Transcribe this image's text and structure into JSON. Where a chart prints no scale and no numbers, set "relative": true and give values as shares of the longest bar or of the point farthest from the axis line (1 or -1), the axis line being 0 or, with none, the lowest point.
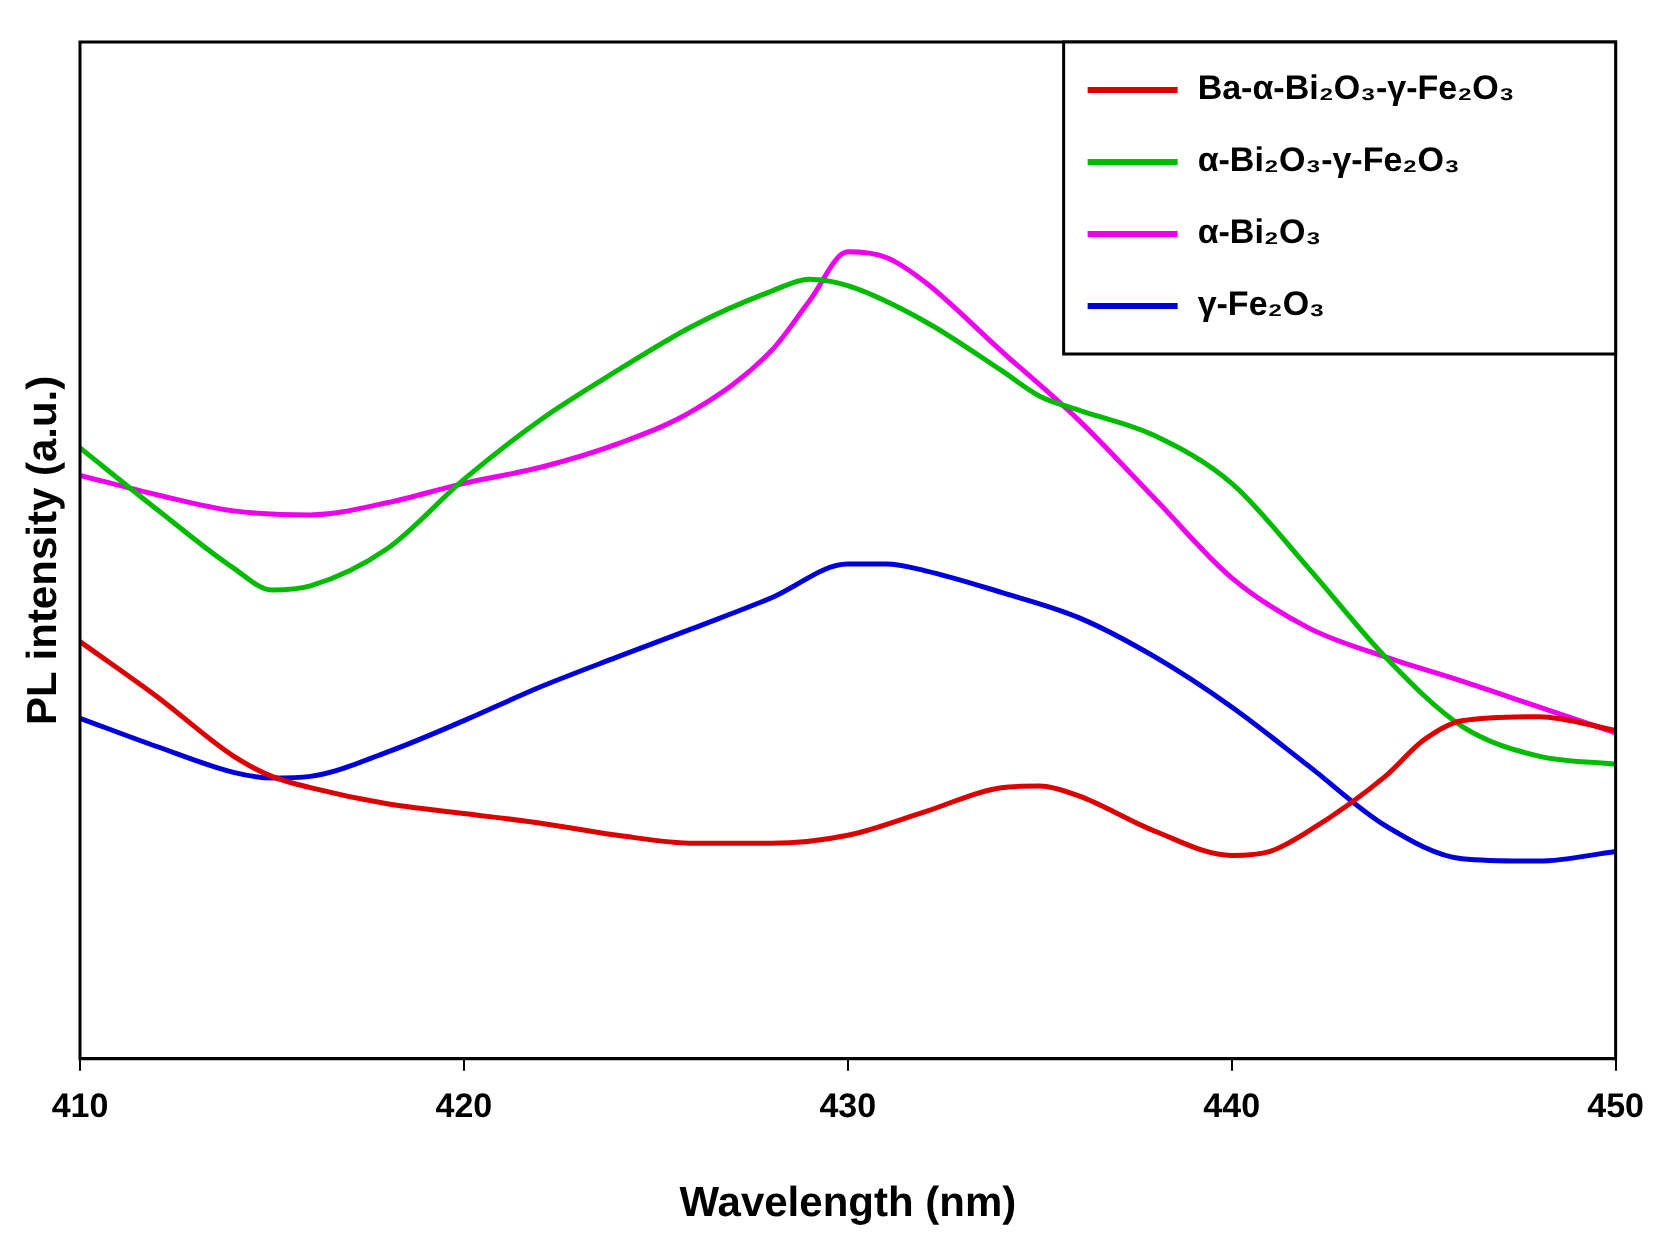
{
  "chart_data": {
    "type": "line",
    "xlabel": "Wavelength (nm)",
    "ylabel": "PL intensity (a.u.)",
    "relative": true,
    "xlim": [
      410,
      450
    ],
    "xticks": [
      410,
      420,
      430,
      440,
      450
    ],
    "grid": false,
    "legend": "top right",
    "marker": "none",
    "line_style": "solid",
    "x": [
      410,
      412,
      414,
      415,
      416,
      418,
      420,
      422,
      424,
      426,
      428,
      430,
      432,
      434,
      435,
      436,
      438,
      440,
      441,
      442,
      444,
      445,
      446,
      448,
      450
    ],
    "series": [
      {
        "name": "Ba-α-Bi₂O₃-γ-Fe₂O₃",
        "color": "#dd0000",
        "values": [
          0.517,
          0.449,
          0.375,
          0.35,
          0.336,
          0.316,
          0.304,
          0.292,
          0.277,
          0.267,
          0.267,
          0.277,
          0.306,
          0.336,
          0.338,
          0.326,
          0.282,
          0.252,
          0.257,
          0.282,
          0.35,
          0.395,
          0.419,
          0.424,
          0.407
        ]
      },
      {
        "name": "α-Bi₂O₃-γ-Fe₂O₃",
        "color": "#00bb00",
        "x": [
          410,
          412,
          414,
          415,
          416,
          418,
          420,
          422,
          424,
          426,
          428,
          429,
          430,
          432,
          434,
          435,
          436,
          438,
          440,
          442,
          444,
          446,
          448,
          450
        ],
        "values": [
          0.757,
          0.681,
          0.608,
          0.581,
          0.586,
          0.632,
          0.718,
          0.792,
          0.853,
          0.909,
          0.951,
          0.966,
          0.958,
          0.914,
          0.853,
          0.821,
          0.804,
          0.772,
          0.713,
          0.608,
          0.498,
          0.412,
          0.375,
          0.365
        ]
      },
      {
        "name": "α-Bi₂O₃",
        "color": "#ee00ee",
        "x": [
          410,
          412,
          414,
          416,
          418,
          420,
          422,
          424,
          426,
          428,
          429,
          430,
          431,
          432,
          434,
          436,
          438,
          440,
          442,
          444,
          446,
          448,
          450
        ],
        "values": [
          0.723,
          0.699,
          0.679,
          0.674,
          0.689,
          0.713,
          0.733,
          0.762,
          0.804,
          0.877,
          0.939,
          1,
          0.993,
          0.963,
          0.877,
          0.792,
          0.694,
          0.596,
          0.534,
          0.498,
          0.468,
          0.436,
          0.404
        ]
      },
      {
        "name": "γ-Fe₂O₃",
        "color": "#0000dd",
        "x": [
          410,
          412,
          414,
          415,
          416,
          418,
          420,
          422,
          424,
          426,
          428,
          430,
          431,
          432,
          434,
          436,
          438,
          440,
          442,
          444,
          446,
          448,
          450
        ],
        "values": [
          0.422,
          0.387,
          0.355,
          0.348,
          0.35,
          0.38,
          0.419,
          0.461,
          0.498,
          0.534,
          0.571,
          0.613,
          0.613,
          0.605,
          0.578,
          0.547,
          0.498,
          0.436,
          0.363,
          0.289,
          0.248,
          0.245,
          0.257
        ]
      }
    ]
  }
}
